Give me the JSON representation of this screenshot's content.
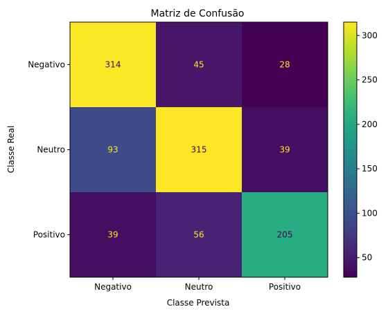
{
  "chart_data": {
    "type": "heatmap",
    "title": "Matriz de Confusão",
    "xlabel": "Classe Prevista",
    "ylabel": "Classe Real",
    "x_categories": [
      "Negativo",
      "Neutro",
      "Positivo"
    ],
    "y_categories": [
      "Negativo",
      "Neutro",
      "Positivo"
    ],
    "values": [
      [
        314,
        45,
        28
      ],
      [
        93,
        315,
        39
      ],
      [
        39,
        56,
        205
      ]
    ],
    "colormap": "viridis",
    "colorbar": {
      "min": 28,
      "max": 315,
      "ticks": [
        50,
        100,
        150,
        200,
        250,
        300
      ]
    }
  },
  "colors": {
    "text_on_dark": "#fde725",
    "text_on_light": "#440154"
  }
}
